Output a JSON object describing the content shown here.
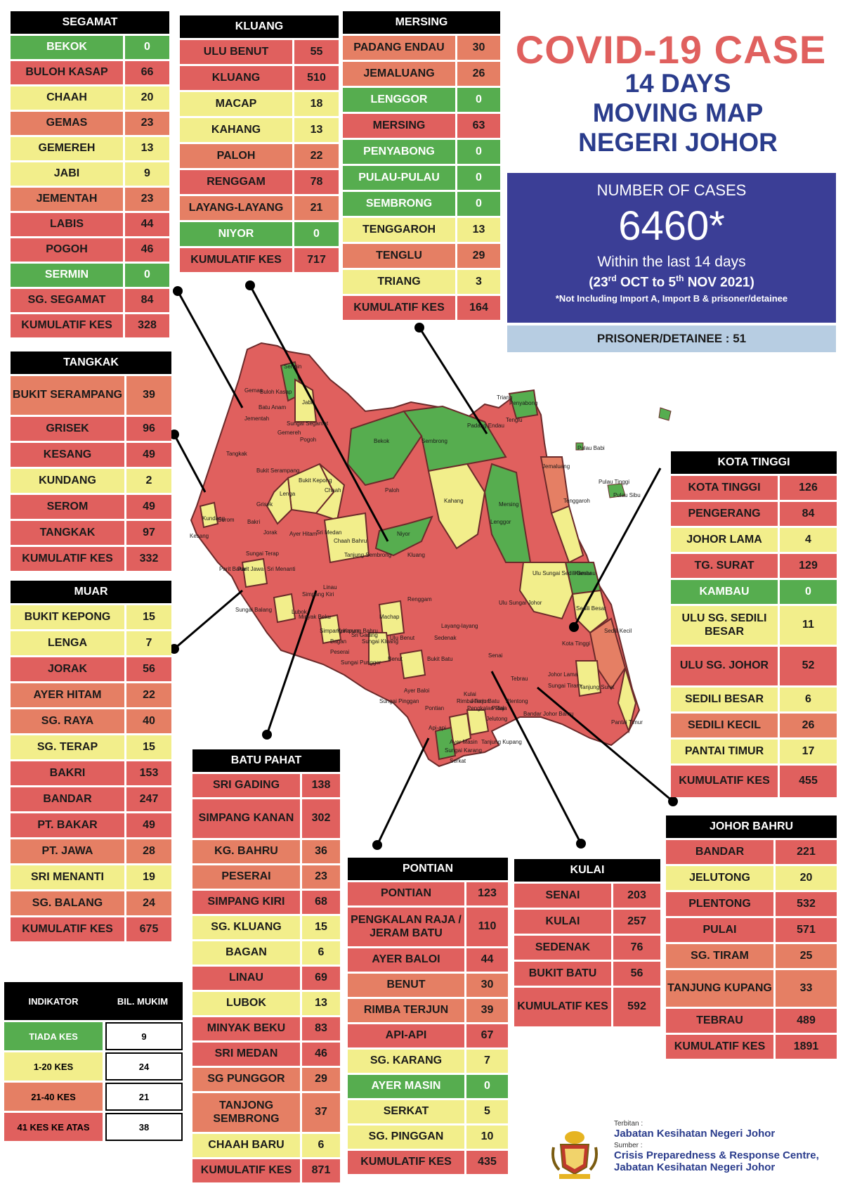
{
  "header": {
    "title": "COVID-19 CASE",
    "subtitle_lines": [
      "14 DAYS",
      "MOVING MAP",
      "NEGERI JOHOR"
    ]
  },
  "summary": {
    "label": "NUMBER OF CASES",
    "total": "6460*",
    "within": "Within the last 14 days",
    "range_prefix": "(23",
    "range_sup1": "rd",
    "range_mid": " OCT to 5",
    "range_sup2": "th",
    "range_suffix": " NOV 2021)",
    "note": "*Not Including Import A, Import B & prisoner/detainee",
    "prisoner": "PRISONER/DETAINEE : 51"
  },
  "colors": {
    "green": "#56ad4f",
    "yellow": "#f2ee8b",
    "orange": "#e57f64",
    "red": "#e0605e",
    "title_red": "#e0605e",
    "title_blue": "#2a3c8c",
    "box_blue": "#3b3e96",
    "prisoner_blue": "#b7cde2"
  },
  "districts": {
    "segamat": {
      "title": "SEGAMAT",
      "rows": [
        {
          "name": "BEKOK",
          "value": "0",
          "level": "green"
        },
        {
          "name": "BULOH KASAP",
          "value": "66",
          "level": "red"
        },
        {
          "name": "CHAAH",
          "value": "20",
          "level": "yellow"
        },
        {
          "name": "GEMAS",
          "value": "23",
          "level": "orange"
        },
        {
          "name": "GEMEREH",
          "value": "13",
          "level": "yellow"
        },
        {
          "name": "JABI",
          "value": "9",
          "level": "yellow"
        },
        {
          "name": "JEMENTAH",
          "value": "23",
          "level": "orange"
        },
        {
          "name": "LABIS",
          "value": "44",
          "level": "red"
        },
        {
          "name": "POGOH",
          "value": "46",
          "level": "red"
        },
        {
          "name": "SERMIN",
          "value": "0",
          "level": "green"
        },
        {
          "name": "SG. SEGAMAT",
          "value": "84",
          "level": "red"
        },
        {
          "name": "KUMULATIF KES",
          "value": "328",
          "level": "sum"
        }
      ]
    },
    "kluang": {
      "title": "KLUANG",
      "rows": [
        {
          "name": "ULU BENUT",
          "value": "55",
          "level": "red"
        },
        {
          "name": "KLUANG",
          "value": "510",
          "level": "red"
        },
        {
          "name": "MACAP",
          "value": "18",
          "level": "yellow"
        },
        {
          "name": "KAHANG",
          "value": "13",
          "level": "yellow"
        },
        {
          "name": "PALOH",
          "value": "22",
          "level": "orange"
        },
        {
          "name": "RENGGAM",
          "value": "78",
          "level": "red"
        },
        {
          "name": "LAYANG-LAYANG",
          "value": "21",
          "level": "orange"
        },
        {
          "name": "NIYOR",
          "value": "0",
          "level": "green"
        },
        {
          "name": "KUMULATIF KES",
          "value": "717",
          "level": "sum"
        }
      ]
    },
    "mersing": {
      "title": "MERSING",
      "rows": [
        {
          "name": "PADANG ENDAU",
          "value": "30",
          "level": "orange"
        },
        {
          "name": "JEMALUANG",
          "value": "26",
          "level": "orange"
        },
        {
          "name": "LENGGOR",
          "value": "0",
          "level": "green"
        },
        {
          "name": "MERSING",
          "value": "63",
          "level": "red"
        },
        {
          "name": "PENYABONG",
          "value": "0",
          "level": "green"
        },
        {
          "name": "PULAU-PULAU",
          "value": "0",
          "level": "green"
        },
        {
          "name": "SEMBRONG",
          "value": "0",
          "level": "green"
        },
        {
          "name": "TENGGAROH",
          "value": "13",
          "level": "yellow"
        },
        {
          "name": "TENGLU",
          "value": "29",
          "level": "orange"
        },
        {
          "name": "TRIANG",
          "value": "3",
          "level": "yellow"
        },
        {
          "name": "KUMULATIF KES",
          "value": "164",
          "level": "sum"
        }
      ]
    },
    "tangkak": {
      "title": "TANGKAK",
      "rows": [
        {
          "name": "BUKIT SERAMPANG",
          "value": "39",
          "level": "orange"
        },
        {
          "name": "GRISEK",
          "value": "96",
          "level": "red"
        },
        {
          "name": "KESANG",
          "value": "49",
          "level": "red"
        },
        {
          "name": "KUNDANG",
          "value": "2",
          "level": "yellow"
        },
        {
          "name": "SEROM",
          "value": "49",
          "level": "red"
        },
        {
          "name": "TANGKAK",
          "value": "97",
          "level": "red"
        },
        {
          "name": "KUMULATIF KES",
          "value": "332",
          "level": "sum"
        }
      ]
    },
    "muar": {
      "title": "MUAR",
      "rows": [
        {
          "name": "BUKIT KEPONG",
          "value": "15",
          "level": "yellow"
        },
        {
          "name": "LENGA",
          "value": "7",
          "level": "yellow"
        },
        {
          "name": "JORAK",
          "value": "56",
          "level": "red"
        },
        {
          "name": "AYER HITAM",
          "value": "22",
          "level": "orange"
        },
        {
          "name": "SG. RAYA",
          "value": "40",
          "level": "orange"
        },
        {
          "name": "SG. TERAP",
          "value": "15",
          "level": "yellow"
        },
        {
          "name": "BAKRI",
          "value": "153",
          "level": "red"
        },
        {
          "name": "BANDAR",
          "value": "247",
          "level": "red"
        },
        {
          "name": "PT. BAKAR",
          "value": "49",
          "level": "red"
        },
        {
          "name": "PT. JAWA",
          "value": "28",
          "level": "orange"
        },
        {
          "name": "SRI MENANTI",
          "value": "19",
          "level": "yellow"
        },
        {
          "name": "SG. BALANG",
          "value": "24",
          "level": "orange"
        },
        {
          "name": "KUMULATIF KES",
          "value": "675",
          "level": "sum"
        }
      ]
    },
    "kota_tinggi": {
      "title": "KOTA TINGGI",
      "rows": [
        {
          "name": "KOTA TINGGI",
          "value": "126",
          "level": "red"
        },
        {
          "name": "PENGERANG",
          "value": "84",
          "level": "red"
        },
        {
          "name": "JOHOR LAMA",
          "value": "4",
          "level": "yellow"
        },
        {
          "name": "TG. SURAT",
          "value": "129",
          "level": "red"
        },
        {
          "name": "KAMBAU",
          "value": "0",
          "level": "green"
        },
        {
          "name": "ULU SG. SEDILI BESAR",
          "value": "11",
          "level": "yellow"
        },
        {
          "name": "ULU  SG. JOHOR",
          "value": "52",
          "level": "red"
        },
        {
          "name": "SEDILI BESAR",
          "value": "6",
          "level": "yellow"
        },
        {
          "name": "SEDILI KECIL",
          "value": "26",
          "level": "orange"
        },
        {
          "name": "PANTAI TIMUR",
          "value": "17",
          "level": "yellow"
        },
        {
          "name": "KUMULATIF KES",
          "value": "455",
          "level": "sum"
        }
      ]
    },
    "batu_pahat": {
      "title": "BATU PAHAT",
      "rows": [
        {
          "name": "SRI GADING",
          "value": "138",
          "level": "red"
        },
        {
          "name": "SIMPANG KANAN",
          "value": "302",
          "level": "red"
        },
        {
          "name": "KG. BAHRU",
          "value": "36",
          "level": "orange"
        },
        {
          "name": "PESERAI",
          "value": "23",
          "level": "orange"
        },
        {
          "name": "SIMPANG KIRI",
          "value": "68",
          "level": "red"
        },
        {
          "name": "SG. KLUANG",
          "value": "15",
          "level": "yellow"
        },
        {
          "name": "BAGAN",
          "value": "6",
          "level": "yellow"
        },
        {
          "name": "LINAU",
          "value": "69",
          "level": "red"
        },
        {
          "name": "LUBOK",
          "value": "13",
          "level": "yellow"
        },
        {
          "name": "MINYAK BEKU",
          "value": "83",
          "level": "red"
        },
        {
          "name": "SRI MEDAN",
          "value": "46",
          "level": "red"
        },
        {
          "name": "SG PUNGGOR",
          "value": "29",
          "level": "orange"
        },
        {
          "name": "TANJONG SEMBRONG",
          "value": "37",
          "level": "orange"
        },
        {
          "name": "CHAAH BARU",
          "value": "6",
          "level": "yellow"
        },
        {
          "name": "KUMULATIF KES",
          "value": "871",
          "level": "sum"
        }
      ]
    },
    "pontian": {
      "title": "PONTIAN",
      "rows": [
        {
          "name": "PONTIAN",
          "value": "123",
          "level": "red"
        },
        {
          "name": "PENGKALAN RAJA / JERAM BATU",
          "value": "110",
          "level": "red"
        },
        {
          "name": "AYER BALOI",
          "value": "44",
          "level": "red"
        },
        {
          "name": "BENUT",
          "value": "30",
          "level": "orange"
        },
        {
          "name": "RIMBA TERJUN",
          "value": "39",
          "level": "orange"
        },
        {
          "name": "API-API",
          "value": "67",
          "level": "red"
        },
        {
          "name": "SG. KARANG",
          "value": "7",
          "level": "yellow"
        },
        {
          "name": "AYER MASIN",
          "value": "0",
          "level": "green"
        },
        {
          "name": "SERKAT",
          "value": "5",
          "level": "yellow"
        },
        {
          "name": "SG. PINGGAN",
          "value": "10",
          "level": "yellow"
        },
        {
          "name": "KUMULATIF KES",
          "value": "435",
          "level": "sum"
        }
      ]
    },
    "kulai": {
      "title": "KULAI",
      "rows": [
        {
          "name": "SENAI",
          "value": "203",
          "level": "red"
        },
        {
          "name": "KULAI",
          "value": "257",
          "level": "red"
        },
        {
          "name": "SEDENAK",
          "value": "76",
          "level": "red"
        },
        {
          "name": "BUKIT BATU",
          "value": "56",
          "level": "red"
        },
        {
          "name": "KUMULATIF KES",
          "value": "592",
          "level": "sum"
        }
      ]
    },
    "johor_bahru": {
      "title": "JOHOR BAHRU",
      "rows": [
        {
          "name": "BANDAR",
          "value": "221",
          "level": "red"
        },
        {
          "name": "JELUTONG",
          "value": "20",
          "level": "yellow"
        },
        {
          "name": "PLENTONG",
          "value": "532",
          "level": "red"
        },
        {
          "name": "PULAI",
          "value": "571",
          "level": "red"
        },
        {
          "name": "SG. TIRAM",
          "value": "25",
          "level": "orange"
        },
        {
          "name": "TANJUNG KUPANG",
          "value": "33",
          "level": "orange"
        },
        {
          "name": "TEBRAU",
          "value": "489",
          "level": "red"
        },
        {
          "name": "KUMULATIF KES",
          "value": "1891",
          "level": "sum"
        }
      ]
    }
  },
  "legend": {
    "header_left": "INDIKATOR",
    "header_right": "BIL. MUKIM",
    "rows": [
      {
        "label": "TIADA KES",
        "count": "9",
        "level": "green"
      },
      {
        "label": "1-20 KES",
        "count": "24",
        "level": "yellow"
      },
      {
        "label": "21-40 KES",
        "count": "21",
        "level": "orange"
      },
      {
        "label": "41 KES KE ATAS",
        "count": "38",
        "level": "red"
      }
    ]
  },
  "credits": {
    "published_by_label": "Terbitan :",
    "published_by": "Jabatan Kesihatan Negeri Johor",
    "source_label": "Sumber :",
    "source_line1": "Crisis Preparedness & Response Centre,",
    "source_line2": "Jabatan Kesihatan Negeri Johor"
  },
  "map_labels": [
    "Gemas",
    "Sermin",
    "Buloh Kasap",
    "Batu Anam",
    "Jabi",
    "Jementah",
    "Sungai Segamat",
    "Gemereh",
    "Pogoh",
    "Tangkak",
    "Bukit Serampang",
    "Bukit Kepong",
    "Lenga",
    "Grisek",
    "Kundang",
    "Serom",
    "Jorak",
    "Chaah",
    "Kesang",
    "Sungai Terap",
    "Bakri",
    "Ayer Hitam",
    "Sri Medan",
    "Parit Bakar",
    "Parit Jawa",
    "Sri Menanti",
    "Chaah Bahru",
    "Tanjung Sembrong",
    "Bekok",
    "Paloh",
    "Niyor",
    "Kluang",
    "Renggam",
    "Sembrong",
    "Kahang",
    "Lenggor",
    "Mersing",
    "Padang Endau",
    "Penyabong",
    "Triang",
    "Tenglu",
    "Jemaluang",
    "Tenggaroh",
    "Pulau Babi",
    "Pulau Tinggi",
    "Pulau Sibu",
    "Kambau",
    "Ulu Sungai Sedili Besar",
    "Sedili Besar",
    "Sedili Kecil",
    "Ulu Sungai Johor",
    "Kota Tinggi",
    "Johor Lama",
    "Tanjung Surat",
    "Pantai Timur",
    "Layang-layang",
    "Machap",
    "Ulu Benut",
    "Sri Gading",
    "Simpang Kanan",
    "Linau",
    "Sungai Balang",
    "Lubok",
    "Simpang Kiri",
    "Sungai Kluang",
    "Minyak Beku",
    "Kampung Bahru",
    "Peserai",
    "Sungai Punggor",
    "Bagan",
    "Sedenak",
    "Bukit Batu",
    "Senai",
    "Kulai",
    "Benut",
    "Sungai Pinggan",
    "Ayer Baloi",
    "Pontian",
    "Jeram Batu",
    "Pengkalan Raja",
    "Rimba Terjun",
    "Pulai",
    "Api-api",
    "Ayer Masin",
    "Sungai Karang",
    "Serkat",
    "Tanjung Kupang",
    "Tebrau",
    "Sungai Tiram",
    "Plentong",
    "Bandar Johor Bahru",
    "Jelutong"
  ]
}
